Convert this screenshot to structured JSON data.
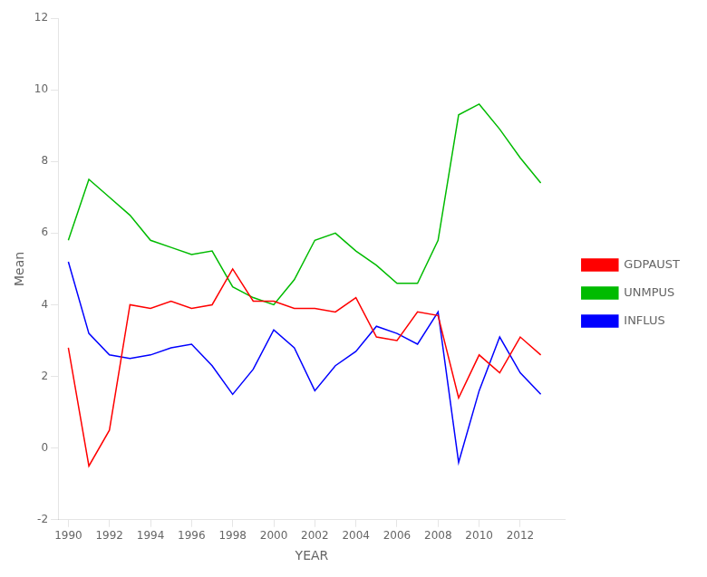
{
  "chart_data": {
    "type": "line",
    "x": [
      1990,
      1991,
      1992,
      1993,
      1994,
      1995,
      1996,
      1997,
      1998,
      1999,
      2000,
      2001,
      2002,
      2003,
      2004,
      2005,
      2006,
      2007,
      2008,
      2009,
      2010,
      2011,
      2012,
      2013
    ],
    "series": [
      {
        "name": "GDPAUST",
        "color": "#ff0000",
        "values": [
          2.8,
          -0.5,
          0.5,
          4.0,
          3.9,
          4.1,
          3.9,
          4.0,
          5.0,
          4.1,
          4.1,
          3.9,
          3.9,
          3.8,
          4.2,
          3.1,
          3.0,
          3.8,
          3.7,
          1.4,
          2.6,
          2.1,
          3.1,
          2.6
        ]
      },
      {
        "name": "UNMPUS",
        "color": "#00bb00",
        "values": [
          5.8,
          7.5,
          7.0,
          6.5,
          5.8,
          5.6,
          5.4,
          5.5,
          4.5,
          4.2,
          4.0,
          4.7,
          5.8,
          6.0,
          5.5,
          5.1,
          4.6,
          4.6,
          5.8,
          9.3,
          9.6,
          8.9,
          8.1,
          7.4
        ]
      },
      {
        "name": "INFLUS",
        "color": "#0000ff",
        "values": [
          5.2,
          3.2,
          2.6,
          2.5,
          2.6,
          2.8,
          2.9,
          2.3,
          1.5,
          2.2,
          3.3,
          2.8,
          1.6,
          2.3,
          2.7,
          3.4,
          3.2,
          2.9,
          3.8,
          -0.4,
          1.6,
          3.1,
          2.1,
          1.5
        ]
      }
    ],
    "x_label": "YEAR",
    "y_label": "Mean",
    "xlim": [
      1989.5,
      2014.2
    ],
    "xticks": [
      1990,
      1992,
      1994,
      1996,
      1998,
      2000,
      2002,
      2004,
      2006,
      2008,
      2010,
      2012
    ],
    "ylim": [
      -2,
      12
    ],
    "yticks": [
      -2,
      0,
      2,
      4,
      6,
      8,
      10,
      12
    ],
    "grid": false,
    "legend": "right"
  }
}
